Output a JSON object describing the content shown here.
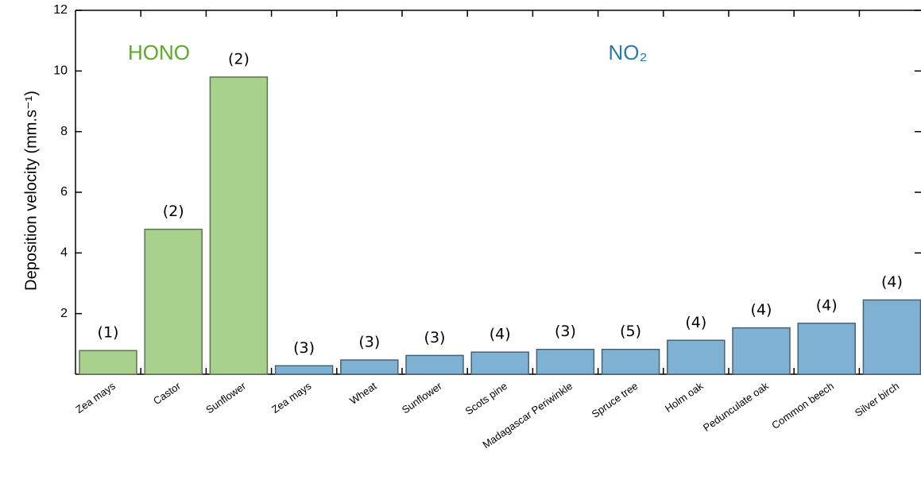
{
  "chart_data": {
    "type": "bar",
    "y_label": "Deposition velocity (mm.s⁻¹)",
    "categories": [
      "Zea mays",
      "Castor",
      "Sunflower",
      "Zea mays",
      "Wheat",
      "Sunflower",
      "Scots pine",
      "Madagascar Periwinkle",
      "Spruce tree",
      "Holm oak",
      "Pedunculate oak",
      "Common beech",
      "Silver birch"
    ],
    "series": [
      {
        "name": "HONO",
        "color": "#a9d18e",
        "values": [
          0.78,
          4.78,
          9.8,
          null,
          null,
          null,
          null,
          null,
          null,
          null,
          null,
          null,
          null
        ]
      },
      {
        "name": "NO₂",
        "color": "#7fb2d2",
        "values": [
          null,
          null,
          null,
          0.28,
          0.47,
          0.62,
          0.73,
          0.82,
          0.82,
          1.12,
          1.53,
          1.68,
          2.45
        ]
      }
    ],
    "bar_notes": [
      "(1)",
      "(2)",
      "(2)",
      "(3)",
      "(3)",
      "(3)",
      "(4)",
      "(3)",
      "(5)",
      "(4)",
      "(4)",
      "(4)",
      "(4)"
    ],
    "ylim": [
      0,
      12
    ],
    "yticks": [
      2,
      4,
      6,
      8,
      10,
      12
    ],
    "grid": false
  }
}
